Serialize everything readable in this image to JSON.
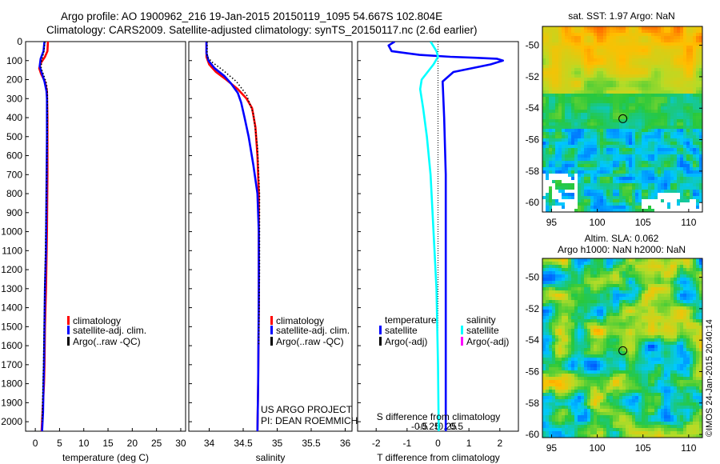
{
  "header": {
    "line1": "Argo profile: AO 1900962_216 19-Jan-2015 20150119_1095 54.667S 102.804E",
    "line2": "Climatology: CARS2009. Satellite-adjusted climatology: synTS_20150117.nc (2.6d earlier)"
  },
  "credit": {
    "line1": "US ARGO PROJECT",
    "line2": "PI: DEAN ROEMMICH"
  },
  "stamp": "©IMOS 24-Jan-2015 20:40:14",
  "colors": {
    "climatology": "#ff0000",
    "satellite": "#0000ff",
    "argo": "#000000",
    "salinity_sat": "#00ffff",
    "salinity_argo": "#ff00ff"
  },
  "chart_data": [
    {
      "type": "line",
      "id": "temperature",
      "xlabel": "temperature (deg C)",
      "xlim": [
        -2,
        31
      ],
      "ylim": [
        0,
        2050
      ],
      "xticks": [
        0,
        5,
        10,
        15,
        20,
        25,
        30
      ],
      "yticks": [
        0,
        100,
        200,
        300,
        400,
        500,
        600,
        700,
        800,
        900,
        1000,
        1100,
        1200,
        1300,
        1400,
        1500,
        1600,
        1700,
        1800,
        1900,
        2000
      ],
      "legend": [
        "climatology",
        "satellite-adj. clim.",
        "Argo(..raw -QC)"
      ],
      "series": [
        {
          "name": "climatology",
          "color": "#ff0000",
          "style": "solid",
          "x": [
            2.6,
            2.5,
            2.0,
            1.2,
            0.8,
            1.2,
            2.0,
            2.4,
            2.5,
            2.5,
            2.4,
            2.2,
            2.0,
            1.9,
            1.8,
            1.5,
            1.3
          ],
          "y": [
            0,
            50,
            80,
            110,
            140,
            170,
            210,
            260,
            400,
            700,
            1000,
            1300,
            1500,
            1700,
            1800,
            1950,
            2050
          ]
        },
        {
          "name": "satellite-adj. clim.",
          "color": "#0000ff",
          "style": "solid",
          "x": [
            1.9,
            1.7,
            1.1,
            0.9,
            1.4,
            1.9,
            2.3,
            2.4,
            2.4,
            2.3,
            2.2,
            2.0,
            1.9,
            1.8,
            1.7,
            1.6,
            1.4
          ],
          "y": [
            0,
            50,
            90,
            130,
            170,
            210,
            260,
            300,
            500,
            800,
            1100,
            1300,
            1500,
            1700,
            1800,
            1950,
            2050
          ]
        },
        {
          "name": "Argo(..raw -QC)",
          "color": "#000000",
          "style": "dotted",
          "x": [
            2.0,
            1.8,
            1.3,
            1.2,
            1.8,
            2.3,
            2.5,
            2.5,
            2.3,
            2.1,
            1.9,
            1.7,
            1.5,
            1.4
          ],
          "y": [
            0,
            50,
            100,
            140,
            180,
            220,
            270,
            400,
            800,
            1100,
            1400,
            1700,
            1900,
            2000
          ]
        }
      ]
    },
    {
      "type": "line",
      "id": "salinity",
      "xlabel": "salinity",
      "xlim": [
        33.7,
        36.1
      ],
      "ylim": [
        0,
        2050
      ],
      "xticks": [
        34,
        34.5,
        35,
        35.5,
        36
      ],
      "xtick_labels": [
        "34",
        "34.5",
        "35",
        "35.5",
        "36"
      ],
      "legend": [
        "climatology",
        "satellite-adj. clim.",
        "Argo(..raw -QC)"
      ],
      "series": [
        {
          "name": "climatology",
          "color": "#ff0000",
          "style": "solid",
          "x": [
            33.96,
            33.96,
            34.0,
            34.1,
            34.25,
            34.42,
            34.55,
            34.63,
            34.68,
            34.71,
            34.73,
            34.73,
            34.73,
            34.72,
            34.71
          ],
          "y": [
            0,
            80,
            120,
            160,
            200,
            250,
            300,
            350,
            450,
            600,
            800,
            1000,
            1400,
            1800,
            2050
          ]
        },
        {
          "name": "satellite-adj. clim.",
          "color": "#0000ff",
          "style": "solid",
          "x": [
            33.96,
            33.96,
            33.99,
            34.08,
            34.22,
            34.32,
            34.42,
            34.47,
            34.52,
            34.58,
            34.65,
            34.71,
            34.73,
            34.73,
            34.72,
            34.71
          ],
          "y": [
            0,
            60,
            100,
            140,
            180,
            220,
            270,
            320,
            400,
            500,
            650,
            800,
            1000,
            1300,
            1800,
            2050
          ]
        },
        {
          "name": "Argo(..raw -QC)",
          "color": "#000000",
          "style": "dotted",
          "x": [
            33.97,
            33.97,
            34.05,
            34.2,
            34.4,
            34.55,
            34.65,
            34.71,
            34.74,
            34.74,
            34.73
          ],
          "y": [
            0,
            80,
            110,
            150,
            210,
            280,
            380,
            550,
            800,
            1200,
            1600
          ]
        }
      ]
    },
    {
      "type": "line",
      "id": "differences",
      "xlabel": "T difference from climatology",
      "x2label": "S difference from climatology",
      "xlim": [
        -2.6,
        2.6
      ],
      "ylim": [
        0,
        2050
      ],
      "xticks": [
        -2,
        -1,
        0,
        1,
        2
      ],
      "x2ticks": [
        -0.5,
        -0.25,
        0,
        0.25,
        0.5
      ],
      "x2tick_labels": [
        "-0.5",
        "-0.25",
        "0",
        "0.25",
        "0.5"
      ],
      "legend_groups": [
        {
          "title": "temperature",
          "items": [
            "satellite",
            "Argo(-adj)"
          ]
        },
        {
          "title": "salinity",
          "items": [
            "satellite",
            "Argo(-adj)"
          ]
        }
      ],
      "series": [
        {
          "name": "temperature satellite",
          "color": "#0000ff",
          "style": "solid",
          "x": [
            -1.4,
            -1.6,
            -1.5,
            -0.6,
            0.4,
            1.2,
            1.9,
            2.1,
            1.7,
            0.5,
            0.15,
            0.2,
            0.25,
            0.25,
            0.25,
            0.25,
            0.25,
            0.25,
            0.25,
            0.25
          ],
          "y": [
            0,
            20,
            50,
            70,
            80,
            85,
            90,
            100,
            120,
            160,
            210,
            400,
            700,
            1000,
            1200,
            1400,
            1600,
            1800,
            1950,
            2050
          ]
        },
        {
          "name": "salinity satellite",
          "color": "#00ffff",
          "style": "solid",
          "x": [
            -0.1,
            -0.02,
            0.0,
            -0.06,
            -0.14,
            -0.22,
            -0.24,
            -0.2,
            -0.15,
            -0.1,
            -0.06,
            -0.02,
            0.0,
            0.01
          ],
          "y": [
            0,
            50,
            80,
            120,
            160,
            200,
            250,
            350,
            500,
            700,
            1000,
            1300,
            1700,
            2050
          ]
        }
      ]
    },
    {
      "type": "heatmap",
      "id": "sst_map",
      "title": "sat. SST: 1.97 Argo: NaN",
      "xlim": [
        94,
        111.5
      ],
      "ylim": [
        -60.6,
        -48.8
      ],
      "xticks": [
        95,
        100,
        105,
        110
      ],
      "yticks": [
        -50,
        -52,
        -54,
        -56,
        -58,
        -60
      ],
      "marker": {
        "lon": 102.8,
        "lat": -54.67
      }
    },
    {
      "type": "heatmap",
      "id": "sla_map",
      "title_line1": "Altim. SLA: 0.062",
      "title_line2": "Argo h1000: NaN h2000: NaN",
      "xlim": [
        94,
        111.5
      ],
      "ylim": [
        -60.2,
        -48.8
      ],
      "xticks": [
        95,
        100,
        105,
        110
      ],
      "yticks": [
        -50,
        -52,
        -54,
        -56,
        -58,
        -60
      ],
      "marker": {
        "lon": 102.8,
        "lat": -54.67
      }
    }
  ]
}
